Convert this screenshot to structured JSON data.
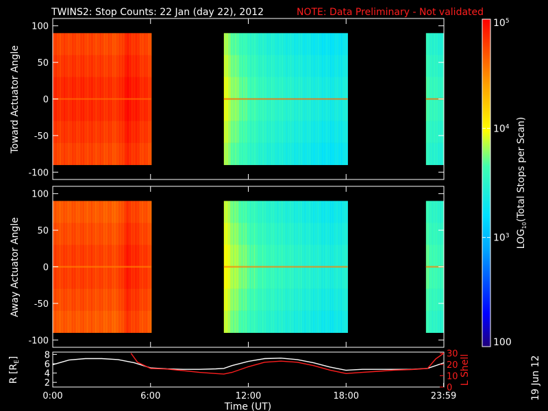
{
  "header": {
    "title": "TWINS2: Stop Counts: 22 Jan (day  22), 2012",
    "note": "NOTE: Data Preliminary - Not validated"
  },
  "side_stamp": "19 Jun 12",
  "colors": {
    "note": "#ff1e1e",
    "frame": "#ffffff",
    "lshell": "#ff1e1e",
    "radius": "#ffffff",
    "background": "#000000"
  },
  "chart_data": [
    {
      "type": "heatmap",
      "name": "toward-panel",
      "ylabel": "Toward Actuator Angle",
      "ylim": [
        -110,
        110
      ],
      "yticks": [
        100,
        50,
        0,
        -50,
        -100
      ],
      "xlim": [
        0,
        24
      ],
      "data_y_range": [
        -90,
        90
      ],
      "scale": "log",
      "coverage_hours": [
        [
          0,
          6.05
        ],
        [
          10.5,
          18.1
        ],
        [
          22.9,
          24
        ]
      ],
      "log_profile": {
        "hours": [
          0,
          1,
          2,
          3,
          4,
          4.5,
          5,
          5.5,
          6,
          10.5,
          11,
          12,
          13,
          14,
          15,
          16,
          17,
          18,
          22.9,
          23.5,
          24
        ],
        "log10_counts": [
          4.78,
          4.8,
          4.8,
          4.78,
          4.75,
          4.9,
          4.85,
          4.8,
          4.75,
          3.9,
          3.75,
          3.6,
          3.5,
          3.45,
          3.4,
          3.35,
          3.3,
          3.35,
          3.6,
          3.5,
          3.5
        ]
      }
    },
    {
      "type": "heatmap",
      "name": "away-panel",
      "ylabel": "Away Actuator Angle",
      "ylim": [
        -110,
        110
      ],
      "yticks": [
        100,
        50,
        0,
        -50,
        -100
      ],
      "xlim": [
        0,
        24
      ],
      "data_y_range": [
        -90,
        90
      ],
      "scale": "log",
      "coverage_hours": [
        [
          0,
          6.05
        ],
        [
          10.5,
          18.1
        ],
        [
          22.9,
          24
        ]
      ],
      "log_profile": {
        "hours": [
          0,
          1,
          2,
          3,
          4,
          4.5,
          5,
          5.5,
          6,
          10.5,
          11,
          12,
          13,
          14,
          15,
          16,
          17,
          18,
          22.9,
          23.5,
          24
        ],
        "log10_counts": [
          4.7,
          4.72,
          4.72,
          4.7,
          4.68,
          4.85,
          4.8,
          4.75,
          4.7,
          3.95,
          3.8,
          3.65,
          3.55,
          3.5,
          3.45,
          3.4,
          3.35,
          3.4,
          3.65,
          3.55,
          3.55
        ]
      }
    },
    {
      "type": "line",
      "name": "orbit-panel",
      "xlabel": "Time (UT)",
      "xticks": [
        "0:00",
        "6:00",
        "12:00",
        "18:00",
        "23:59"
      ],
      "xtick_hours": [
        0,
        6,
        12,
        18,
        23.98
      ],
      "y_left_label": "R [R",
      "y_left_label_sub": "E",
      "y_left_label_end": "]",
      "y_left_ticks": [
        "8",
        "6",
        "4",
        "2"
      ],
      "y_left_tick_values": [
        8,
        6,
        4,
        2
      ],
      "y_left_lim": [
        1,
        8.5
      ],
      "y_right_label": "L Shell",
      "y_right_ticks": [
        "30",
        "20",
        "10",
        "0"
      ],
      "y_right_tick_values": [
        30,
        20,
        10,
        0
      ],
      "y_right_lim": [
        0,
        31
      ],
      "series": [
        {
          "axis": "left",
          "x": [
            0,
            1,
            2,
            3,
            4,
            5,
            6,
            7,
            8,
            9,
            10,
            10.5,
            11,
            12,
            13,
            14,
            15,
            16,
            17,
            18,
            19,
            20,
            21,
            22,
            23,
            24
          ],
          "values": [
            5.8,
            6.8,
            7.1,
            7.1,
            6.9,
            6.2,
            5.1,
            4.9,
            4.8,
            4.8,
            4.9,
            5.0,
            5.6,
            6.5,
            7.1,
            7.2,
            6.9,
            6.2,
            5.3,
            4.6,
            4.8,
            4.8,
            4.8,
            4.8,
            5.0,
            6.2
          ]
        },
        {
          "axis": "right",
          "x": [
            4.8,
            5.2,
            6,
            7,
            8,
            9,
            10,
            10.5,
            11,
            12,
            13,
            14,
            15,
            16,
            17,
            18,
            19,
            20,
            21,
            22,
            23,
            23.5,
            24
          ],
          "values": [
            30,
            22,
            16.5,
            16,
            14.5,
            13,
            12,
            11.5,
            13,
            18,
            22,
            23,
            22,
            19,
            15,
            12,
            13,
            14,
            15,
            15.5,
            16.5,
            25,
            30
          ]
        }
      ]
    },
    {
      "type": "colorbar",
      "name": "color-scale",
      "label": "LOG",
      "label_sub": "10",
      "label_end": "(Total Stops per Scan)",
      "scale": "log",
      "range": [
        100,
        100000
      ],
      "ticks": [
        {
          "base": "10",
          "exp": "5",
          "value": 100000
        },
        {
          "base": "10",
          "exp": "4",
          "value": 10000
        },
        {
          "base": "10",
          "exp": "3",
          "value": 1000
        },
        {
          "base": "100",
          "exp": "",
          "value": 100
        }
      ]
    }
  ]
}
